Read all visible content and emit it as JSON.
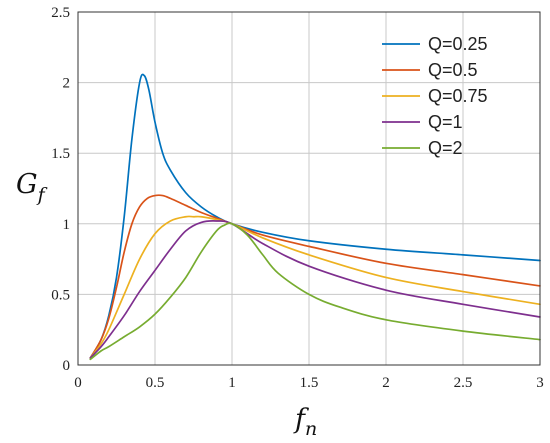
{
  "chart_data": {
    "type": "line",
    "title": "",
    "xlabel": "f",
    "xlabel_sub": "n",
    "ylabel": "G",
    "ylabel_sub": "f",
    "xlim": [
      0,
      3
    ],
    "ylim": [
      0,
      2.5
    ],
    "xticks": [
      "0",
      "0.5",
      "1",
      "1.5",
      "2",
      "2.5",
      "3"
    ],
    "yticks": [
      "0",
      "0.5",
      "1",
      "1.5",
      "2",
      "2.5"
    ],
    "grid": true,
    "legend_position": "top-right",
    "series": [
      {
        "name": "Q=0.25",
        "color": "#0072BD",
        "x": [
          0.08,
          0.15,
          0.2,
          0.25,
          0.3,
          0.35,
          0.4,
          0.43,
          0.46,
          0.5,
          0.55,
          0.6,
          0.7,
          0.8,
          0.9,
          1.0,
          1.2,
          1.5,
          2.0,
          2.5,
          3.0
        ],
        "y": [
          0.05,
          0.18,
          0.35,
          0.62,
          1.05,
          1.6,
          2.0,
          2.05,
          1.95,
          1.72,
          1.5,
          1.38,
          1.22,
          1.12,
          1.05,
          1.0,
          0.94,
          0.88,
          0.82,
          0.78,
          0.74
        ]
      },
      {
        "name": "Q=0.5",
        "color": "#D95319",
        "x": [
          0.08,
          0.15,
          0.2,
          0.25,
          0.3,
          0.35,
          0.4,
          0.45,
          0.5,
          0.55,
          0.6,
          0.7,
          0.8,
          0.9,
          1.0,
          1.2,
          1.5,
          2.0,
          2.5,
          3.0
        ],
        "y": [
          0.05,
          0.18,
          0.33,
          0.55,
          0.8,
          1.0,
          1.12,
          1.18,
          1.2,
          1.2,
          1.18,
          1.13,
          1.08,
          1.04,
          1.0,
          0.92,
          0.84,
          0.72,
          0.64,
          0.56
        ]
      },
      {
        "name": "Q=0.75",
        "color": "#EDB120",
        "x": [
          0.08,
          0.15,
          0.2,
          0.3,
          0.4,
          0.5,
          0.6,
          0.7,
          0.75,
          0.8,
          0.9,
          1.0,
          1.2,
          1.5,
          2.0,
          2.5,
          3.0
        ],
        "y": [
          0.05,
          0.15,
          0.25,
          0.5,
          0.75,
          0.93,
          1.02,
          1.05,
          1.05,
          1.05,
          1.03,
          1.0,
          0.9,
          0.78,
          0.62,
          0.52,
          0.43
        ]
      },
      {
        "name": "Q=1",
        "color": "#7E2F8E",
        "x": [
          0.08,
          0.15,
          0.2,
          0.3,
          0.4,
          0.5,
          0.6,
          0.7,
          0.8,
          0.9,
          1.0,
          1.2,
          1.5,
          2.0,
          2.5,
          3.0
        ],
        "y": [
          0.05,
          0.13,
          0.2,
          0.35,
          0.52,
          0.67,
          0.82,
          0.95,
          1.01,
          1.02,
          1.0,
          0.86,
          0.7,
          0.53,
          0.43,
          0.34
        ]
      },
      {
        "name": "Q=2",
        "color": "#77AC30",
        "x": [
          0.08,
          0.15,
          0.2,
          0.3,
          0.4,
          0.5,
          0.6,
          0.7,
          0.8,
          0.9,
          0.95,
          1.0,
          1.1,
          1.2,
          1.3,
          1.5,
          1.7,
          2.0,
          2.5,
          3.0
        ],
        "y": [
          0.04,
          0.1,
          0.13,
          0.2,
          0.27,
          0.36,
          0.48,
          0.62,
          0.8,
          0.95,
          0.99,
          1.0,
          0.92,
          0.78,
          0.65,
          0.5,
          0.41,
          0.32,
          0.24,
          0.18
        ]
      }
    ]
  }
}
